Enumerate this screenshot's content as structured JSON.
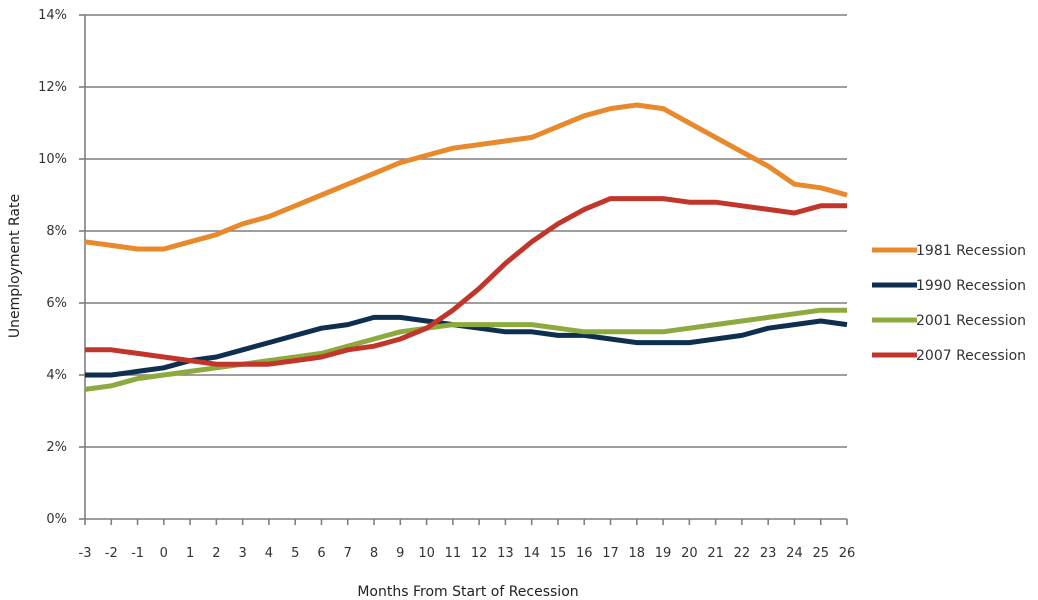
{
  "chart_data": {
    "type": "line",
    "title": "",
    "xlabel": "Months From Start of Recession",
    "ylabel": "Unemployment Rate",
    "x": [
      -3,
      -2,
      -1,
      0,
      1,
      2,
      3,
      4,
      5,
      6,
      7,
      8,
      9,
      10,
      11,
      12,
      13,
      14,
      15,
      16,
      17,
      18,
      19,
      20,
      21,
      22,
      23,
      24,
      25,
      26
    ],
    "ylim": [
      0,
      14
    ],
    "yticks": [
      0,
      2,
      4,
      6,
      8,
      10,
      12,
      14
    ],
    "ytick_labels": [
      "0%",
      "2%",
      "4%",
      "6%",
      "8%",
      "10%",
      "12%",
      "14%"
    ],
    "xtick_labels": [
      "-3",
      "-2",
      "-1",
      "0",
      "1",
      "2",
      "3",
      "4",
      "5",
      "6",
      "7",
      "8",
      "9",
      "10",
      "11",
      "12",
      "13",
      "14",
      "15",
      "16",
      "17",
      "18",
      "19",
      "20",
      "21",
      "22",
      "23",
      "24",
      "25",
      "26"
    ],
    "grid": "horizontal",
    "legend_position": "right",
    "series": [
      {
        "name": "1981 Recession",
        "color": "#E8892B",
        "values": [
          7.7,
          7.6,
          7.5,
          7.5,
          7.7,
          7.9,
          8.2,
          8.4,
          8.7,
          9.0,
          9.3,
          9.6,
          9.9,
          10.1,
          10.3,
          10.4,
          10.5,
          10.6,
          10.9,
          11.2,
          11.4,
          11.5,
          11.4,
          11.0,
          10.6,
          10.2,
          9.8,
          9.3,
          9.2,
          9.0
        ]
      },
      {
        "name": "1990 Recession",
        "color": "#0E2F4F",
        "values": [
          4.0,
          4.0,
          4.1,
          4.2,
          4.4,
          4.5,
          4.7,
          4.9,
          5.1,
          5.3,
          5.4,
          5.6,
          5.6,
          5.5,
          5.4,
          5.3,
          5.2,
          5.2,
          5.1,
          5.1,
          5.0,
          4.9,
          4.9,
          4.9,
          5.0,
          5.1,
          5.3,
          5.4,
          5.5,
          5.4
        ]
      },
      {
        "name": "2001 Recession",
        "color": "#8DAA3F",
        "values": [
          3.6,
          3.7,
          3.9,
          4.0,
          4.1,
          4.2,
          4.3,
          4.4,
          4.5,
          4.6,
          4.8,
          5.0,
          5.2,
          5.3,
          5.4,
          5.4,
          5.4,
          5.4,
          5.3,
          5.2,
          5.2,
          5.2,
          5.2,
          5.3,
          5.4,
          5.5,
          5.6,
          5.7,
          5.8,
          5.8
        ]
      },
      {
        "name": "2007 Recession",
        "color": "#C2352A",
        "values": [
          4.7,
          4.7,
          4.6,
          4.5,
          4.4,
          4.3,
          4.3,
          4.3,
          4.4,
          4.5,
          4.7,
          4.8,
          5.0,
          5.3,
          5.8,
          6.4,
          7.1,
          7.7,
          8.2,
          8.6,
          8.9,
          8.9,
          8.9,
          8.8,
          8.8,
          8.7,
          8.6,
          8.5,
          8.7,
          8.7
        ]
      }
    ]
  }
}
